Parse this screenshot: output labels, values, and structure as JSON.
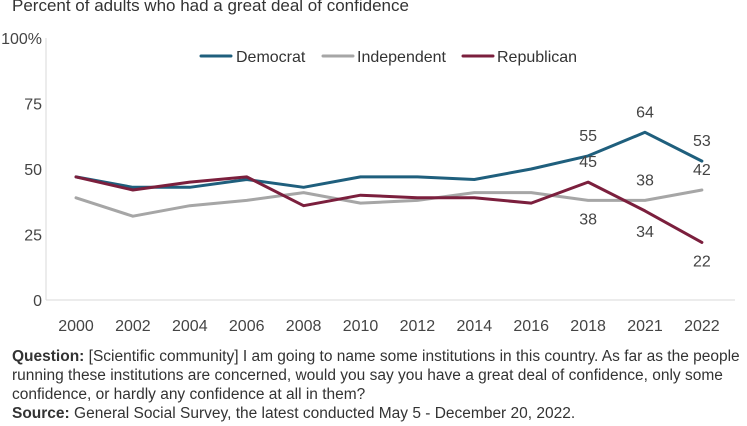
{
  "chart_data": {
    "type": "line",
    "title": "Percent of adults who had a great deal of confidence",
    "categories": [
      "2000",
      "2002",
      "2004",
      "2006",
      "2008",
      "2010",
      "2012",
      "2014",
      "2016",
      "2018",
      "2021",
      "2022"
    ],
    "y_ticks": [
      "0",
      "25",
      "50",
      "75",
      "100%"
    ],
    "ylim": [
      0,
      100
    ],
    "grid": false,
    "legend_position": "top",
    "series": [
      {
        "name": "Democrat",
        "color": "#1f5f7d",
        "values": [
          47,
          43,
          43,
          46,
          43,
          47,
          47,
          46,
          50,
          55,
          64,
          53
        ]
      },
      {
        "name": "Independent",
        "color": "#a6a6a6",
        "values": [
          39,
          32,
          36,
          38,
          41,
          37,
          38,
          41,
          41,
          38,
          38,
          42
        ]
      },
      {
        "name": "Republican",
        "color": "#7b1f3d",
        "values": [
          47,
          42,
          45,
          47,
          36,
          40,
          39,
          39,
          37,
          45,
          34,
          22
        ]
      }
    ],
    "data_labels": [
      {
        "series": 0,
        "index": 9,
        "text": "55"
      },
      {
        "series": 0,
        "index": 10,
        "text": "64"
      },
      {
        "series": 0,
        "index": 11,
        "text": "53"
      },
      {
        "series": 1,
        "index": 9,
        "text": "38"
      },
      {
        "series": 1,
        "index": 10,
        "text": "38"
      },
      {
        "series": 1,
        "index": 11,
        "text": "42"
      },
      {
        "series": 2,
        "index": 9,
        "text": "45"
      },
      {
        "series": 2,
        "index": 10,
        "text": "34"
      },
      {
        "series": 2,
        "index": 11,
        "text": "22"
      }
    ]
  },
  "notes": {
    "question_label": "Question:",
    "question_text": " [Scientific community] I am going to name some institutions in this country. As far as the people running these institutions are concerned, would you say you have a great deal of confidence, only some confidence, or hardly any confidence at all in them?",
    "source_label": "Source:",
    "source_text": " General Social Survey, the latest conducted May 5 - December 20, 2022."
  }
}
